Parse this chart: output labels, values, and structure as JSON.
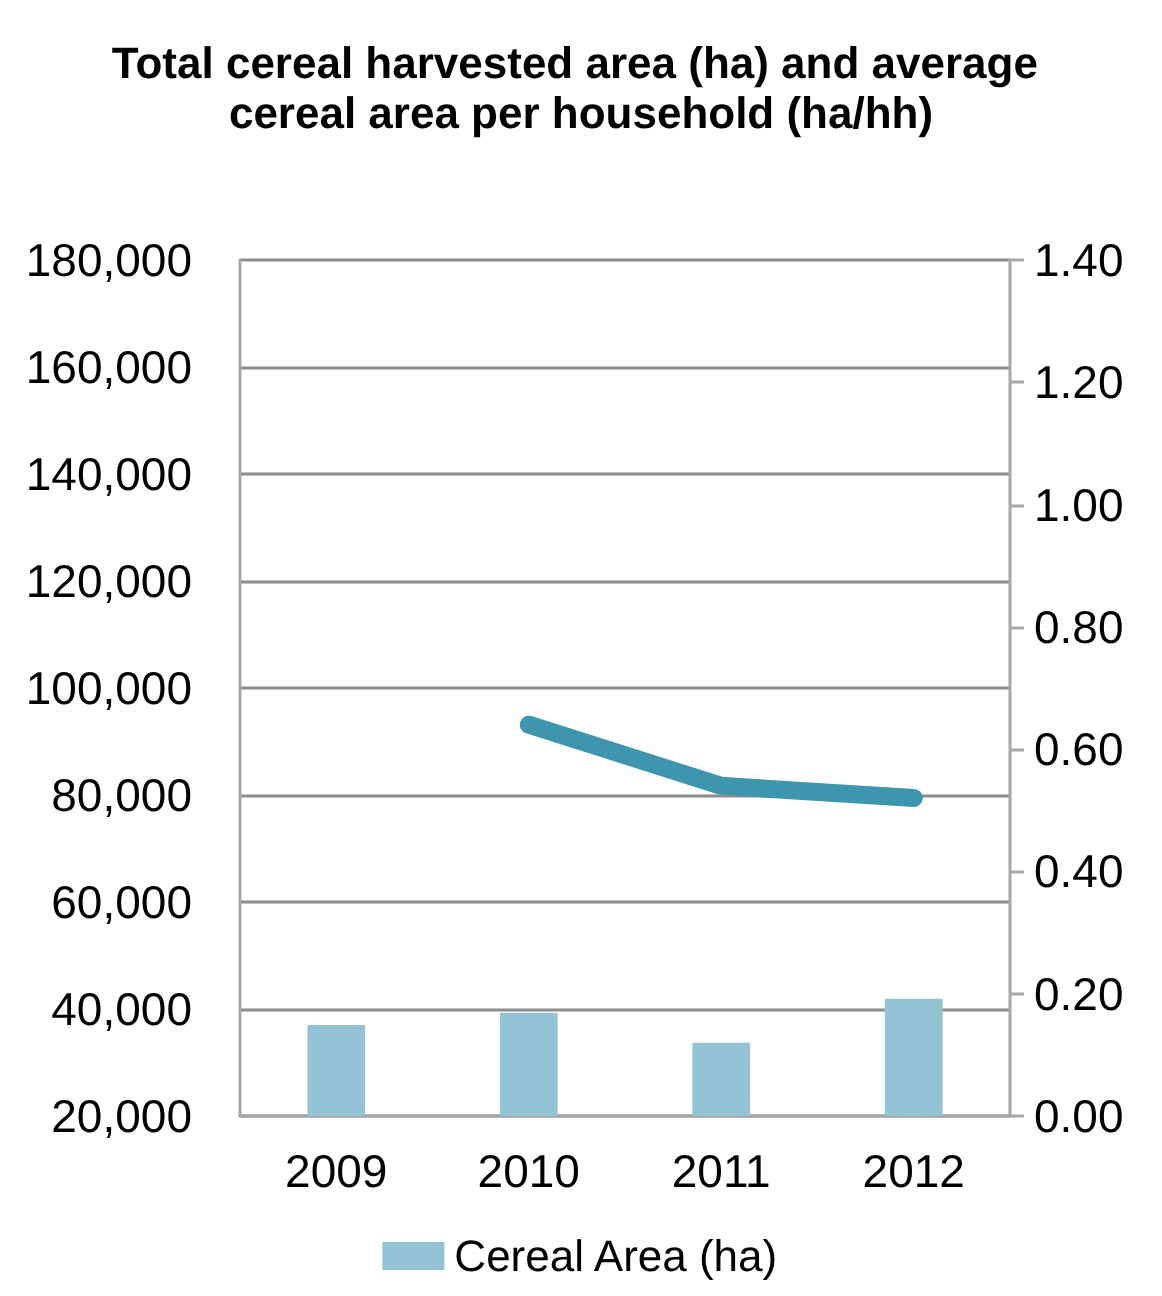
{
  "chart_data": {
    "type": "bar",
    "title": "Total cereal harvested area (ha) and average cereal area per household (ha/hh)",
    "categories": [
      "2009",
      "2010",
      "2011",
      "2012"
    ],
    "series": [
      {
        "name": "Cereal Area (ha)",
        "color": "#93c3d4",
        "values": [
          37000,
          39300,
          33700,
          41900
        ]
      },
      {
        "type": "line",
        "axis": "y2",
        "color": "#3d96ae",
        "values": [
          null,
          0.64,
          0.54,
          0.52
        ]
      }
    ],
    "ylim": [
      20000,
      180000
    ],
    "yticks": [
      {
        "value": 20000,
        "label": "20,000"
      },
      {
        "value": 40000,
        "label": "40,000"
      },
      {
        "value": 60000,
        "label": "60,000"
      },
      {
        "value": 80000,
        "label": "80,000"
      },
      {
        "value": 100000,
        "label": "100,000"
      },
      {
        "value": 120000,
        "label": "120,000"
      },
      {
        "value": 140000,
        "label": "140,000"
      },
      {
        "value": 160000,
        "label": "160,000"
      },
      {
        "value": 180000,
        "label": "180,000"
      }
    ],
    "y2lim": [
      0,
      1.4
    ],
    "y2ticks": [
      {
        "value": 0,
        "label": "0.00"
      },
      {
        "value": 0.2,
        "label": "0.20"
      },
      {
        "value": 0.4,
        "label": "0.40"
      },
      {
        "value": 0.6,
        "label": "0.60"
      },
      {
        "value": 0.8,
        "label": "0.80"
      },
      {
        "value": 1.0,
        "label": "1.00"
      },
      {
        "value": 1.2,
        "label": "1.20"
      },
      {
        "value": 1.4,
        "label": "1.40"
      }
    ],
    "grid": "y",
    "legend": "bottom",
    "marker": "none",
    "line_style": "solid"
  }
}
